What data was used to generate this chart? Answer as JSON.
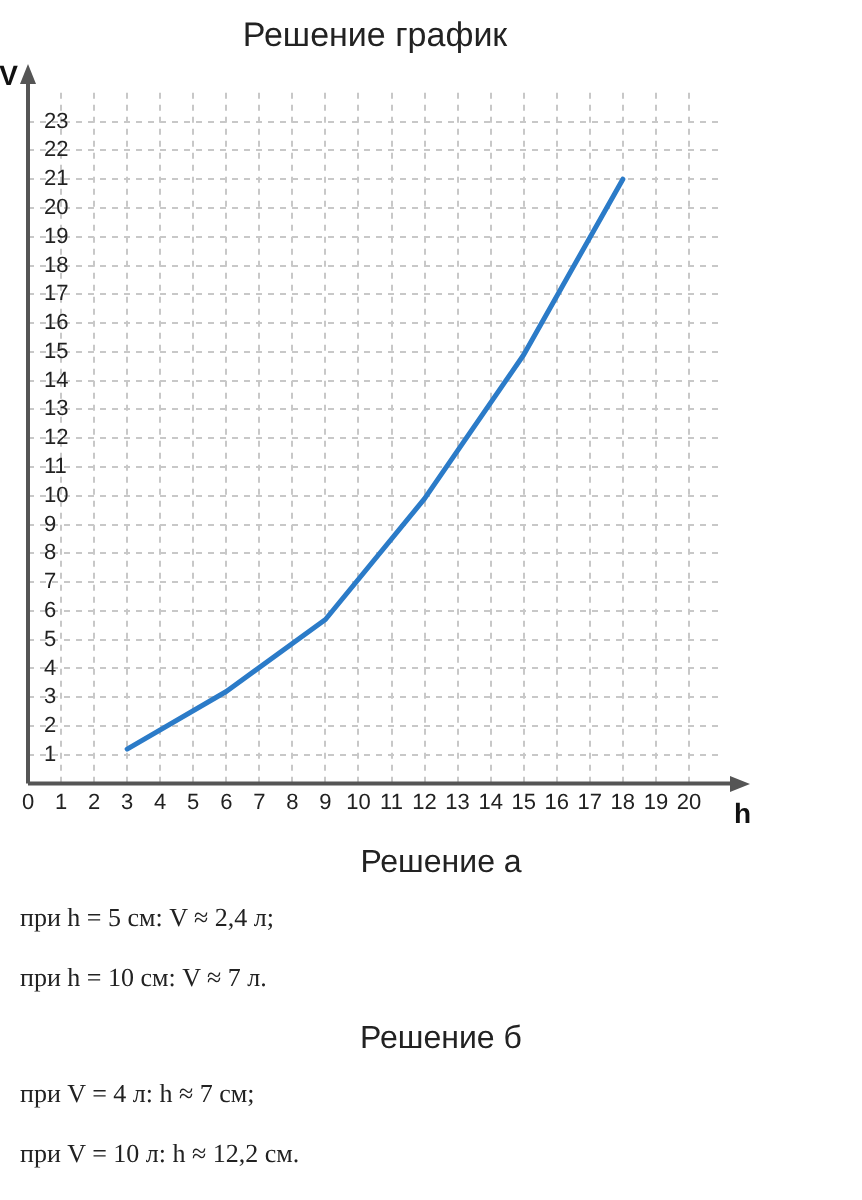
{
  "chart_data": {
    "type": "line",
    "title": "Решение график",
    "xlabel": "h",
    "ylabel": "V",
    "x": [
      3,
      6,
      9,
      12,
      15,
      18
    ],
    "series": [
      {
        "color": "#2b7bc8",
        "values": [
          1.2,
          3.2,
          5.7,
          9.9,
          14.9,
          21
        ]
      }
    ],
    "xlim": [
      0,
      21
    ],
    "ylim": [
      0,
      24
    ],
    "xticks": [
      0,
      1,
      2,
      3,
      4,
      5,
      6,
      7,
      8,
      9,
      10,
      11,
      12,
      13,
      14,
      15,
      16,
      17,
      18,
      19,
      20
    ],
    "yticks": [
      1,
      2,
      3,
      4,
      5,
      6,
      7,
      8,
      9,
      10,
      11,
      12,
      13,
      14,
      15,
      16,
      17,
      18,
      19,
      20,
      21,
      22,
      23
    ],
    "grid": true,
    "marker": "none",
    "line_style": "solid",
    "annotations": [
      "Решение а",
      "при h = 5 см: V ≈ 2,4 л;",
      "при h = 10 см: V ≈ 7 л.",
      "Решение б",
      "при V = 4 л: h ≈ 7 см;",
      "при V = 10 л: h ≈ 12,2 см."
    ]
  }
}
